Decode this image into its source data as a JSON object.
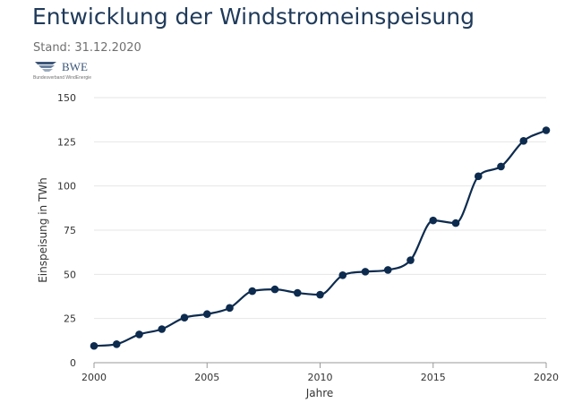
{
  "header": {
    "title": "Entwicklung der Windstromeinspeisung",
    "subtitle": "Stand: 31.12.2020",
    "logo_abbrev": "BWE",
    "logo_text": "Bundesverband WindEnergie"
  },
  "colors": {
    "title": "#1f3a5a",
    "line": "#0d2b4e",
    "axis": "#333333",
    "grid": "#e6e6e6"
  },
  "chart_data": {
    "type": "line",
    "xlabel": "Jahre",
    "ylabel": "Einspeisung in TWh",
    "xlim": [
      2000,
      2020
    ],
    "ylim": [
      0,
      150
    ],
    "x_ticks": [
      2000,
      2005,
      2010,
      2015,
      2020
    ],
    "y_ticks": [
      0,
      25,
      50,
      75,
      100,
      125,
      150
    ],
    "grid": "horizontal",
    "legend": "none",
    "series": [
      {
        "x": [
          2000,
          2001,
          2002,
          2003,
          2004,
          2005,
          2006,
          2007,
          2008,
          2009,
          2010,
          2011,
          2012,
          2013,
          2014,
          2015,
          2016,
          2017,
          2018,
          2019,
          2020
        ],
        "values": [
          9.5,
          10.5,
          16,
          19,
          25.5,
          27.5,
          31,
          40.5,
          41.5,
          39.5,
          38.5,
          49.5,
          51.5,
          52.5,
          58,
          80.5,
          79,
          105.5,
          111,
          125.5,
          131.5
        ]
      }
    ]
  }
}
